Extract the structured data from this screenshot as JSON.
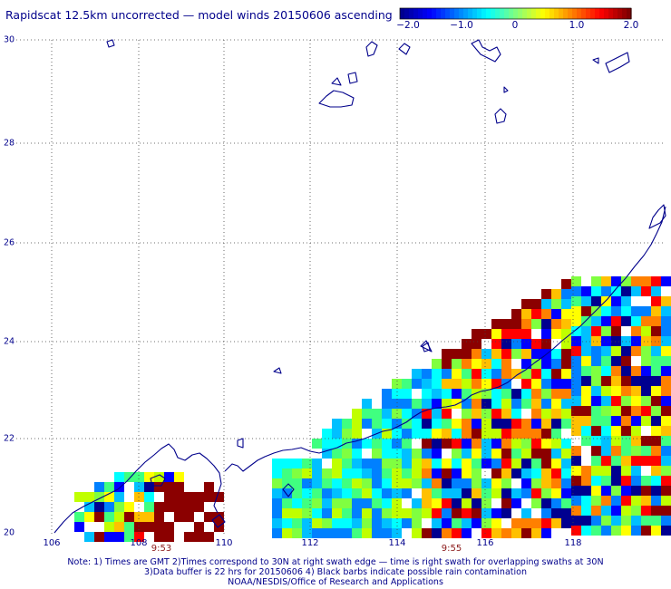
{
  "title": "Rapidscat 12.5km uncorrected — model winds 20150606 ascending",
  "colorbar": {
    "range": [
      -2.0,
      2.0
    ],
    "labels": [
      {
        "value": -2.0,
        "text": "−2.0"
      },
      {
        "value": -1.0,
        "text": "−1.0"
      },
      {
        "value": 0,
        "text": "0"
      },
      {
        "value": 1.0,
        "text": "1.0"
      },
      {
        "value": 2.0,
        "text": "2.0"
      }
    ],
    "colors": [
      "#00008f",
      "#0000ff",
      "#0080ff",
      "#00ffff",
      "#80ff80",
      "#ffff00",
      "#ff8000",
      "#ff0000",
      "#800000"
    ]
  },
  "map": {
    "lon_range": [
      105.5,
      119.7
    ],
    "lat_range": [
      20,
      30
    ],
    "lat_labels": [
      "30",
      "28",
      "26",
      "24",
      "22",
      "20"
    ],
    "lon_labels": [
      "106",
      "108",
      "110",
      "112",
      "114",
      "116",
      "118"
    ],
    "time_labels": [
      {
        "text": "9:53",
        "lon": 108.5
      },
      {
        "text": "9:55",
        "lon": 114.7
      }
    ]
  },
  "notes": [
    "Note: 1) Times are GMT 2)Times correspond to 30N at right swath edge — time is right swath for overlapping swaths at 30N",
    "3)Data buffer is 22 hrs for 20150606 4) Black barbs indicate possible rain contamination",
    "NOAA/NESDIS/Office of Research and Applications"
  ]
}
